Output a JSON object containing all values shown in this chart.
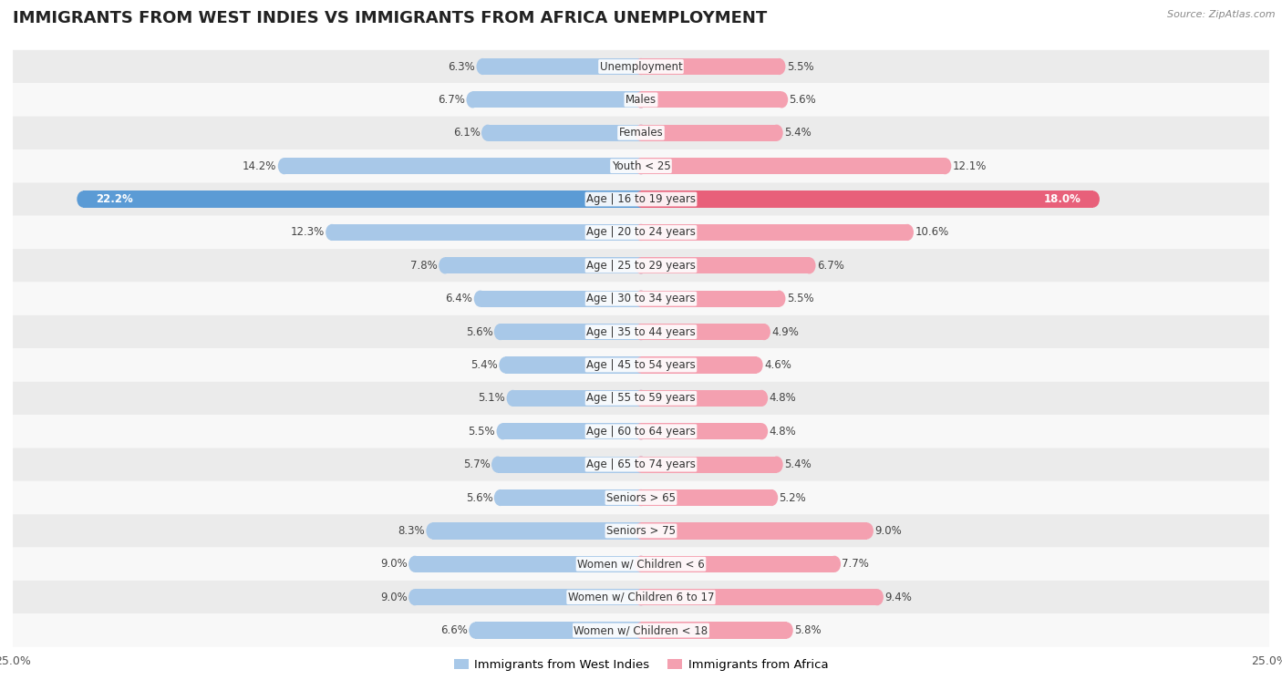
{
  "title": "IMMIGRANTS FROM WEST INDIES VS IMMIGRANTS FROM AFRICA UNEMPLOYMENT",
  "source": "Source: ZipAtlas.com",
  "categories": [
    "Unemployment",
    "Males",
    "Females",
    "Youth < 25",
    "Age | 16 to 19 years",
    "Age | 20 to 24 years",
    "Age | 25 to 29 years",
    "Age | 30 to 34 years",
    "Age | 35 to 44 years",
    "Age | 45 to 54 years",
    "Age | 55 to 59 years",
    "Age | 60 to 64 years",
    "Age | 65 to 74 years",
    "Seniors > 65",
    "Seniors > 75",
    "Women w/ Children < 6",
    "Women w/ Children 6 to 17",
    "Women w/ Children < 18"
  ],
  "west_indies": [
    6.3,
    6.7,
    6.1,
    14.2,
    22.2,
    12.3,
    7.8,
    6.4,
    5.6,
    5.4,
    5.1,
    5.5,
    5.7,
    5.6,
    8.3,
    9.0,
    9.0,
    6.6
  ],
  "africa": [
    5.5,
    5.6,
    5.4,
    12.1,
    18.0,
    10.6,
    6.7,
    5.5,
    4.9,
    4.6,
    4.8,
    4.8,
    5.4,
    5.2,
    9.0,
    7.7,
    9.4,
    5.8
  ],
  "max_val": 25.0,
  "wi_color_normal": "#a8c8e8",
  "af_color_normal": "#f4a0b0",
  "wi_color_highlight": "#5b9bd5",
  "af_color_highlight": "#e8607a",
  "row_color_even": "#ebebeb",
  "row_color_odd": "#f8f8f8",
  "bar_height": 0.5,
  "title_fontsize": 13,
  "label_fontsize": 8.5,
  "value_fontsize": 8.5,
  "legend_wi": "Immigrants from West Indies",
  "legend_af": "Immigrants from Africa"
}
